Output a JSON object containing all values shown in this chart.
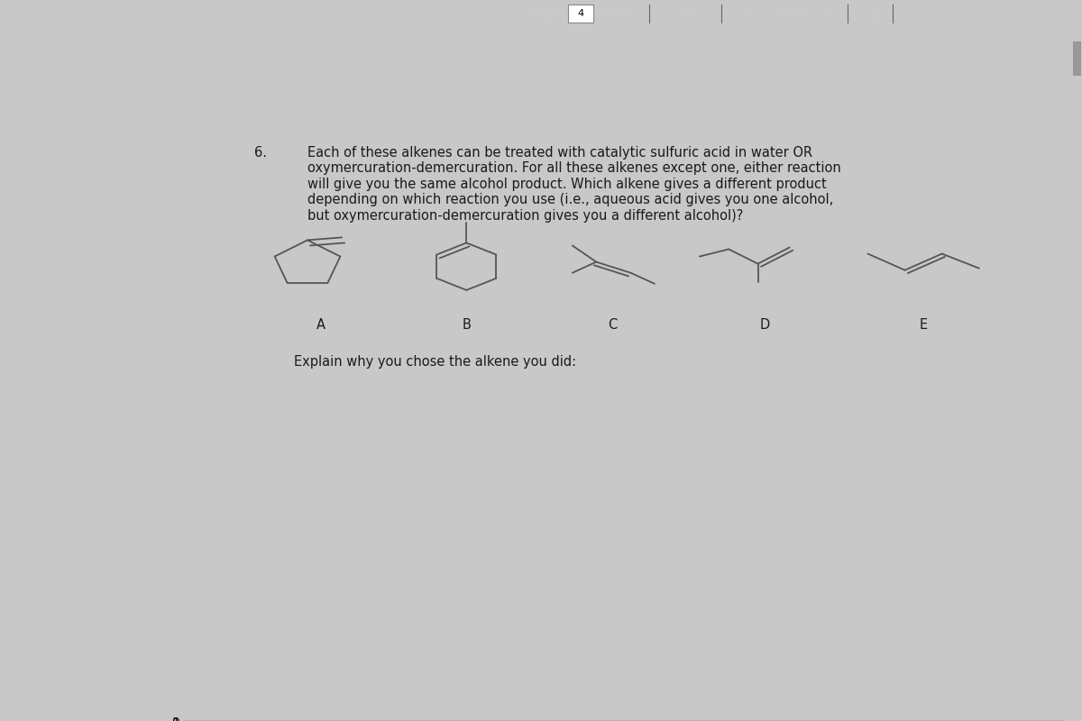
{
  "bg_outer": "#c8c8c8",
  "bg_page": "#ffffff",
  "bg_toolbar": "#4a5060",
  "question_number": "6.",
  "question_text_line1": "Each of these alkenes can be treated with catalytic sulfuric acid in water OR",
  "question_text_line2": "oxymercuration-demercuration. For all these alkenes except one, either reaction",
  "question_text_line3": "will give you the same alcohol product. Which alkene gives a different product",
  "question_text_line4": "depending on which reaction you use (i.e., aqueous acid gives you one alcohol,",
  "question_text_line5": "but oxymercuration-demercuration gives you a different alcohol)?",
  "explain_text": "Explain why you chose the alkene you did:",
  "labels": [
    "A",
    "B",
    "C",
    "D",
    "E"
  ],
  "text_color": "#1a1a1a",
  "line_color": "#555555",
  "page_text_color": "#888888"
}
